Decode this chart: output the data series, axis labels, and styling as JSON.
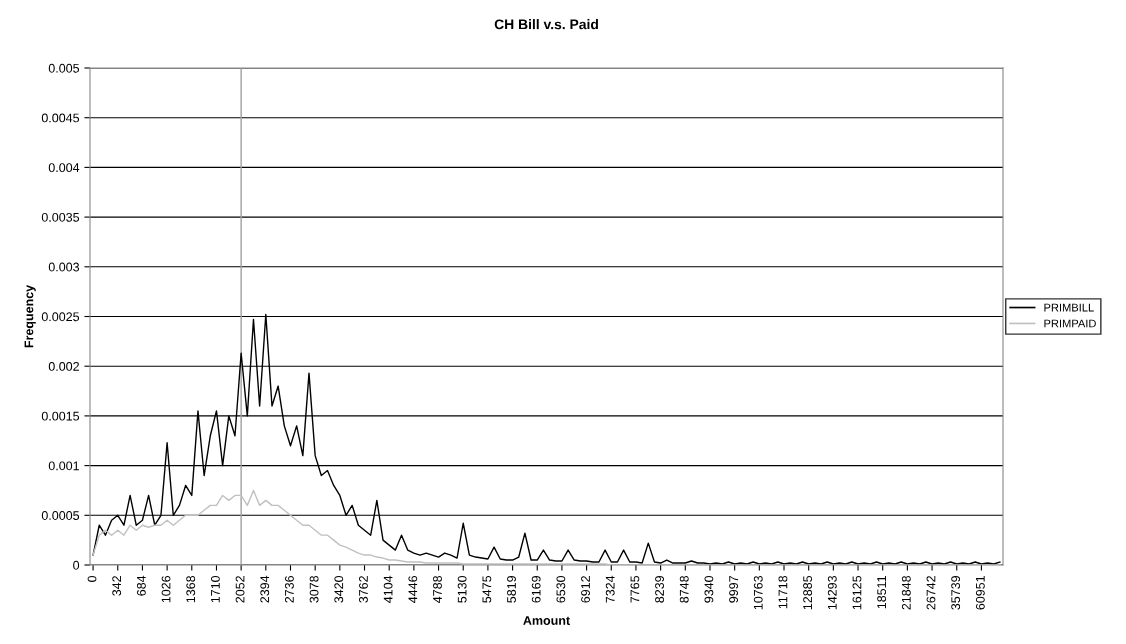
{
  "chart_data": {
    "type": "line",
    "title": "CH Bill v.s. Paid",
    "xlabel": "Amount",
    "ylabel": "Frequency",
    "categories": [
      "0",
      null,
      null,
      null,
      "342",
      null,
      null,
      null,
      "684",
      null,
      null,
      null,
      "1026",
      null,
      null,
      null,
      "1368",
      null,
      null,
      null,
      "1710",
      null,
      null,
      null,
      "2052",
      null,
      null,
      null,
      "2394",
      null,
      null,
      null,
      "2736",
      null,
      null,
      null,
      "3078",
      null,
      null,
      null,
      "3420",
      null,
      null,
      null,
      "3762",
      null,
      null,
      null,
      "4104",
      null,
      null,
      null,
      "4446",
      null,
      null,
      null,
      "4788",
      null,
      null,
      null,
      "5130",
      null,
      null,
      null,
      "5475",
      null,
      null,
      null,
      "5819",
      null,
      null,
      null,
      "6169",
      null,
      null,
      null,
      "6530",
      null,
      null,
      null,
      "6912",
      null,
      null,
      null,
      "7324",
      null,
      null,
      null,
      "7765",
      null,
      null,
      null,
      "8239",
      null,
      null,
      null,
      "8748",
      null,
      null,
      null,
      "9340",
      null,
      null,
      null,
      "9997",
      null,
      null,
      null,
      "10763",
      null,
      null,
      null,
      "11718",
      null,
      null,
      null,
      "12885",
      null,
      null,
      null,
      "14293",
      null,
      null,
      null,
      "16125",
      null,
      null,
      null,
      "18511",
      null,
      null,
      null,
      "21848",
      null,
      null,
      null,
      "26742",
      null,
      null,
      null,
      "35739",
      null,
      null,
      null,
      "60951",
      null,
      null,
      null
    ],
    "series": [
      {
        "name": "PRIMBILL",
        "color": "#000000",
        "values": [
          0.0001,
          0.0004,
          0.0003,
          0.00045,
          0.0005,
          0.0004,
          0.0007,
          0.0004,
          0.00045,
          0.0007,
          0.0004,
          0.0005,
          0.00123,
          0.0005,
          0.0006,
          0.0008,
          0.0007,
          0.00155,
          0.0009,
          0.0013,
          0.00155,
          0.001,
          0.0015,
          0.0013,
          0.00213,
          0.0015,
          0.00247,
          0.0016,
          0.00252,
          0.0016,
          0.0018,
          0.0014,
          0.0012,
          0.0014,
          0.0011,
          0.00193,
          0.0011,
          0.0009,
          0.00095,
          0.0008,
          0.0007,
          0.0005,
          0.0006,
          0.0004,
          0.00035,
          0.0003,
          0.00065,
          0.00025,
          0.0002,
          0.00015,
          0.0003,
          0.00015,
          0.00012,
          0.0001,
          0.00012,
          0.0001,
          8e-05,
          0.00012,
          0.0001,
          7e-05,
          0.00042,
          0.0001,
          8e-05,
          7e-05,
          6e-05,
          0.00018,
          6e-05,
          5e-05,
          5e-05,
          8e-05,
          0.00032,
          5e-05,
          5e-05,
          0.00015,
          5e-05,
          4e-05,
          4e-05,
          0.00015,
          5e-05,
          4e-05,
          4e-05,
          3e-05,
          3e-05,
          0.00015,
          3e-05,
          3e-05,
          0.00015,
          3e-05,
          3e-05,
          2e-05,
          0.00022,
          3e-05,
          2e-05,
          5e-05,
          2e-05,
          2e-05,
          2e-05,
          4e-05,
          2e-05,
          2e-05,
          1e-05,
          2e-05,
          1e-05,
          3e-05,
          1e-05,
          2e-05,
          1e-05,
          3e-05,
          1e-05,
          2e-05,
          1e-05,
          3e-05,
          1e-05,
          2e-05,
          1e-05,
          3e-05,
          1e-05,
          2e-05,
          1e-05,
          3e-05,
          1e-05,
          2e-05,
          1e-05,
          3e-05,
          1e-05,
          2e-05,
          1e-05,
          3e-05,
          1e-05,
          2e-05,
          1e-05,
          3e-05,
          1e-05,
          2e-05,
          1e-05,
          3e-05,
          1e-05,
          2e-05,
          1e-05,
          3e-05,
          1e-05,
          2e-05,
          1e-05,
          3e-05,
          1e-05,
          2e-05,
          1e-05,
          3e-05
        ]
      },
      {
        "name": "PRIMPAID",
        "color": "#c0c0c0",
        "values": [
          0.0001,
          0.0003,
          0.00035,
          0.0003,
          0.00035,
          0.0003,
          0.0004,
          0.00035,
          0.0004,
          0.00038,
          0.0004,
          0.0004,
          0.00045,
          0.0004,
          0.00045,
          0.0005,
          0.0005,
          0.0005,
          0.00055,
          0.0006,
          0.0006,
          0.0007,
          0.00065,
          0.0007,
          0.0007,
          0.0006,
          0.00075,
          0.0006,
          0.00065,
          0.0006,
          0.0006,
          0.00055,
          0.0005,
          0.00045,
          0.0004,
          0.0004,
          0.00035,
          0.0003,
          0.0003,
          0.00025,
          0.0002,
          0.00018,
          0.00015,
          0.00012,
          0.0001,
          0.0001,
          8e-05,
          7e-05,
          5e-05,
          5e-05,
          4e-05,
          3e-05,
          3e-05,
          3e-05,
          2e-05,
          2e-05,
          2e-05,
          2e-05,
          2e-05,
          2e-05,
          1e-05,
          1e-05,
          1e-05,
          1e-05,
          1e-05,
          1e-05,
          1e-05,
          1e-05,
          1e-05,
          1e-05,
          1e-05,
          1e-05,
          1e-05,
          1e-05,
          1e-05,
          1e-05,
          1e-05,
          1e-05,
          1e-05,
          1e-05,
          1e-05,
          1e-05,
          1e-05,
          1e-05,
          0,
          0,
          0,
          0,
          0,
          0,
          0,
          0,
          0,
          0,
          0,
          0,
          0,
          0,
          0,
          0,
          0,
          0,
          0,
          0,
          0,
          0,
          0,
          0,
          0,
          0,
          0,
          0,
          0,
          0,
          0,
          0,
          0,
          0,
          0,
          0,
          0,
          0,
          0,
          0,
          0,
          0,
          0,
          0,
          0,
          0,
          0,
          0,
          0,
          0,
          0,
          0,
          0,
          0,
          0,
          0,
          0,
          0,
          0,
          0,
          0,
          0,
          0,
          0
        ]
      }
    ],
    "ylim": [
      0,
      0.005
    ],
    "yticks": [
      0,
      0.0005,
      0.001,
      0.0015,
      0.002,
      0.0025,
      0.003,
      0.0035,
      0.004,
      0.0045,
      0.005
    ],
    "grid": "y",
    "legend": "right",
    "marker": "none",
    "line_style": "solid",
    "ref_lines": [
      {
        "axis": "x",
        "value": "2052",
        "color": "#a0a0a0"
      }
    ]
  }
}
